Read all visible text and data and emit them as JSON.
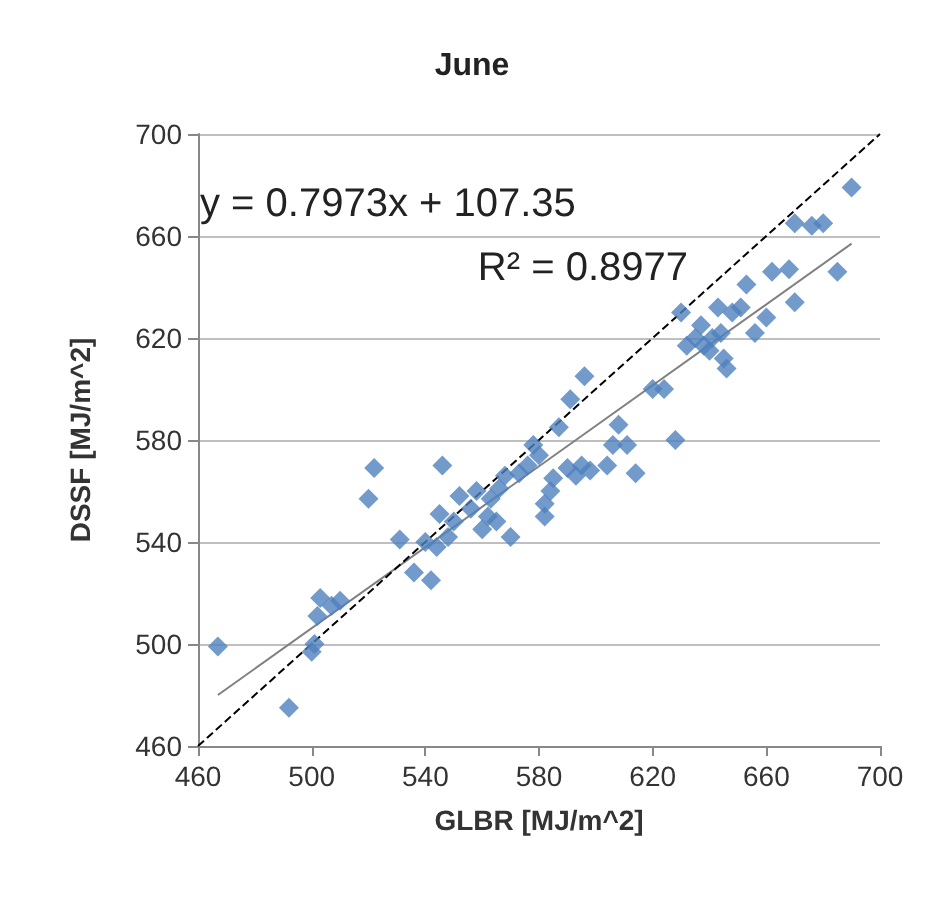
{
  "chart_data": {
    "type": "scatter",
    "title": "June",
    "xlabel": "GLBR [MJ/m^2]",
    "ylabel": "DSSF [MJ/m^2]",
    "annotations": [
      "y = 0.7973x + 107.35",
      "R² = 0.8977"
    ],
    "xlim": [
      460,
      700
    ],
    "xticks": [
      460,
      500,
      540,
      580,
      620,
      660,
      700
    ],
    "ylim": [
      460,
      700
    ],
    "yticks": [
      460,
      500,
      540,
      580,
      620,
      660,
      700
    ],
    "grid": "y",
    "marker": "diamond",
    "series": [
      {
        "color": "#4f81bd",
        "x": [
          467,
          492,
          500,
          501,
          502,
          503,
          507,
          510,
          520,
          522,
          531,
          536,
          540,
          542,
          544,
          545,
          546,
          548,
          550,
          552,
          556,
          558,
          560,
          562,
          563,
          565,
          566,
          568,
          570,
          573,
          576,
          578,
          580,
          582,
          582,
          584,
          585,
          587,
          590,
          591,
          593,
          595,
          596,
          598,
          604,
          606,
          608,
          611,
          614,
          620,
          624,
          628,
          630,
          632,
          635,
          637,
          638,
          640,
          641,
          643,
          644,
          645,
          646,
          648,
          651,
          653,
          656,
          660,
          662,
          668,
          670,
          670,
          676,
          680,
          685,
          690
        ],
        "values": [
          499,
          475,
          497,
          500,
          511,
          518,
          515,
          517,
          557,
          569,
          541,
          528,
          540,
          525,
          538,
          551,
          570,
          542,
          548,
          558,
          553,
          560,
          545,
          550,
          557,
          548,
          561,
          566,
          542,
          567,
          570,
          578,
          574,
          555,
          550,
          560,
          565,
          585,
          569,
          596,
          566,
          570,
          605,
          568,
          570,
          578,
          586,
          578,
          567,
          600,
          600,
          580,
          630,
          617,
          620,
          625,
          617,
          615,
          620,
          632,
          622,
          612,
          608,
          630,
          632,
          641,
          622,
          628,
          646,
          647,
          665,
          634,
          664,
          665,
          646,
          679
        ]
      },
      {
        "type": "line",
        "color": "#808080",
        "line_style": "solid",
        "marker": "none",
        "x": [
          467,
          690
        ],
        "values": [
          480,
          657
        ]
      },
      {
        "type": "line",
        "color": "#000000",
        "line_style": "dashed",
        "marker": "none",
        "x": [
          460,
          700
        ],
        "values": [
          460,
          700
        ]
      }
    ]
  }
}
